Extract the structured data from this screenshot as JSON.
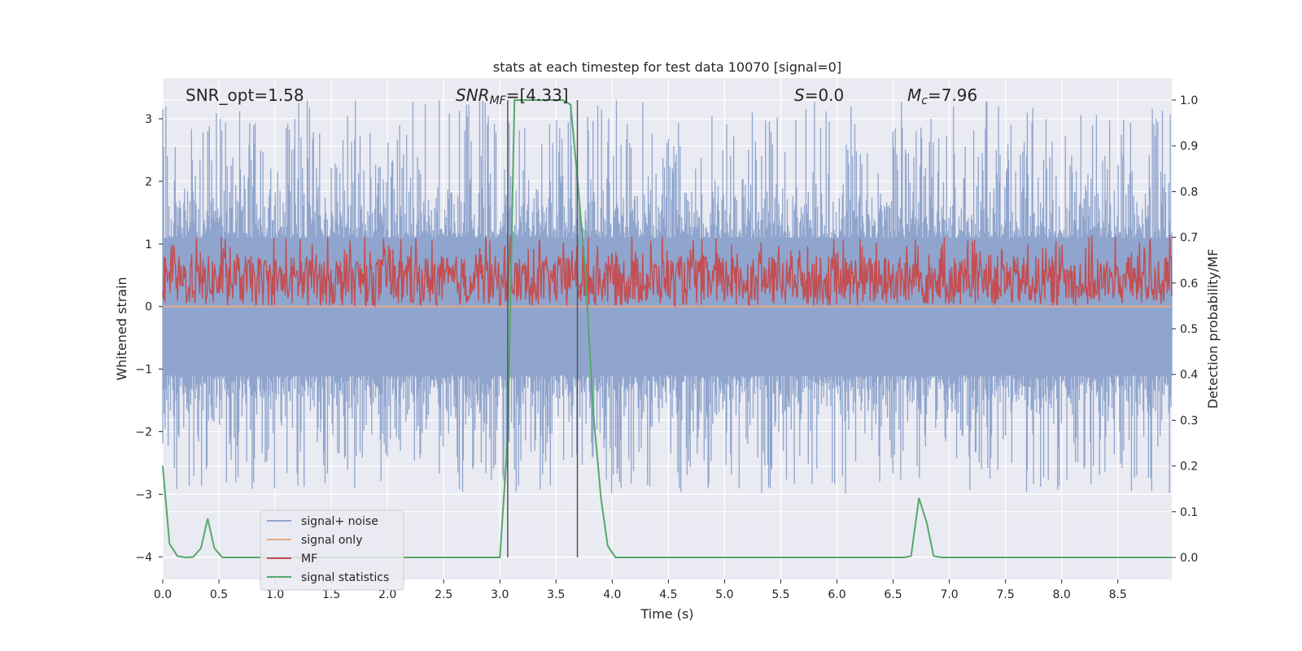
{
  "chart_data": {
    "type": "line",
    "title": "stats at each timestep for test data 10070 [signal=0]",
    "xlabel": "Time (s)",
    "ylabel_left": "Whitened strain",
    "ylabel_right": "Detection probability/MF",
    "xlim": [
      0,
      8.98
    ],
    "ylim_left": [
      -4.36,
      3.65
    ],
    "ylim_right": [
      -0.048,
      1.048
    ],
    "grid": true,
    "legend_position": "lower left",
    "xticks": [
      "0.0",
      "0.5",
      "1.0",
      "1.5",
      "2.0",
      "2.5",
      "3.0",
      "3.5",
      "4.0",
      "4.5",
      "5.0",
      "5.5",
      "6.0",
      "6.5",
      "7.0",
      "7.5",
      "8.0",
      "8.5"
    ],
    "yticks_left": [
      "3",
      "2",
      "1",
      "0",
      "−1",
      "−2",
      "−3",
      "−4"
    ],
    "yticks_right": [
      "1.0",
      "0.9",
      "0.8",
      "0.7",
      "0.6",
      "0.5",
      "0.4",
      "0.3",
      "0.2",
      "0.1",
      "0.0"
    ],
    "annotations": {
      "snr_opt": "SNR_opt=1.58",
      "snr_mf_main": "SNR",
      "snr_mf_sub": "MF",
      "snr_mf_value": "=[4.33]",
      "s_main": "S",
      "s_value": "=0.0",
      "mc_main": "M",
      "mc_sub": "c",
      "mc_value": "=7.96"
    },
    "vertical_lines_x": [
      3.07,
      3.69
    ],
    "series": [
      {
        "name": "signal+ noise",
        "color": "#8fa5cd",
        "note_axis": "left",
        "amplitude_band": [
          -1.1,
          1.1
        ],
        "peak_range": [
          -3.0,
          3.3
        ]
      },
      {
        "name": "signal only",
        "color": "#e8a889",
        "axis": "left",
        "values_constant": 0.0
      },
      {
        "name": "MF",
        "color": "#c44e52",
        "axis": "right",
        "band": [
          0.55,
          0.66
        ],
        "peak_max": 0.705
      },
      {
        "name": "signal statistics",
        "color": "#55a868",
        "axis": "right",
        "x": [
          0.0,
          0.06,
          0.13,
          0.2,
          0.27,
          0.34,
          0.4,
          0.46,
          0.53,
          0.6,
          0.66,
          3.0,
          3.07,
          3.13,
          3.2,
          3.3,
          3.4,
          3.5,
          3.56,
          3.63,
          3.69,
          3.76,
          3.83,
          3.9,
          3.96,
          4.03,
          6.6,
          6.66,
          6.73,
          6.8,
          6.86,
          6.93,
          8.98
        ],
        "values": [
          0.2,
          0.03,
          0.003,
          0.0,
          0.001,
          0.02,
          0.085,
          0.02,
          0.0,
          0.0,
          0.0,
          0.0,
          0.26,
          1.0,
          1.0,
          1.0,
          1.0,
          1.0,
          1.0,
          0.99,
          0.83,
          0.63,
          0.32,
          0.13,
          0.025,
          0.0,
          0.0,
          0.003,
          0.13,
          0.075,
          0.003,
          0.0,
          0.0
        ]
      }
    ]
  }
}
